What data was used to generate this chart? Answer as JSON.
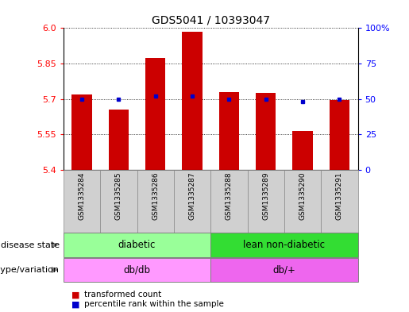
{
  "title": "GDS5041 / 10393047",
  "samples": [
    "GSM1335284",
    "GSM1335285",
    "GSM1335286",
    "GSM1335287",
    "GSM1335288",
    "GSM1335289",
    "GSM1335290",
    "GSM1335291"
  ],
  "bar_values": [
    5.72,
    5.655,
    5.875,
    5.985,
    5.73,
    5.725,
    5.565,
    5.695
  ],
  "percentile_values": [
    50,
    50,
    52,
    52,
    50,
    50,
    48,
    50
  ],
  "ylim": [
    5.4,
    6.0
  ],
  "y2lim": [
    0,
    100
  ],
  "yticks": [
    5.4,
    5.55,
    5.7,
    5.85,
    6.0
  ],
  "y2ticks": [
    0,
    25,
    50,
    75,
    100
  ],
  "bar_color": "#cc0000",
  "marker_color": "#0000cc",
  "disease_state": [
    {
      "label": "diabetic",
      "span": [
        0,
        4
      ],
      "color": "#99ff99"
    },
    {
      "label": "lean non-diabetic",
      "span": [
        4,
        8
      ],
      "color": "#33dd33"
    }
  ],
  "genotype": [
    {
      "label": "db/db",
      "span": [
        0,
        4
      ],
      "color": "#ff99ff"
    },
    {
      "label": "db/+",
      "span": [
        4,
        8
      ],
      "color": "#ee66ee"
    }
  ],
  "legend_items": [
    {
      "label": "transformed count",
      "color": "#cc0000"
    },
    {
      "label": "percentile rank within the sample",
      "color": "#0000cc"
    }
  ],
  "bar_width": 0.55,
  "sample_bg_color": "#d0d0d0",
  "sample_border_color": "#888888"
}
